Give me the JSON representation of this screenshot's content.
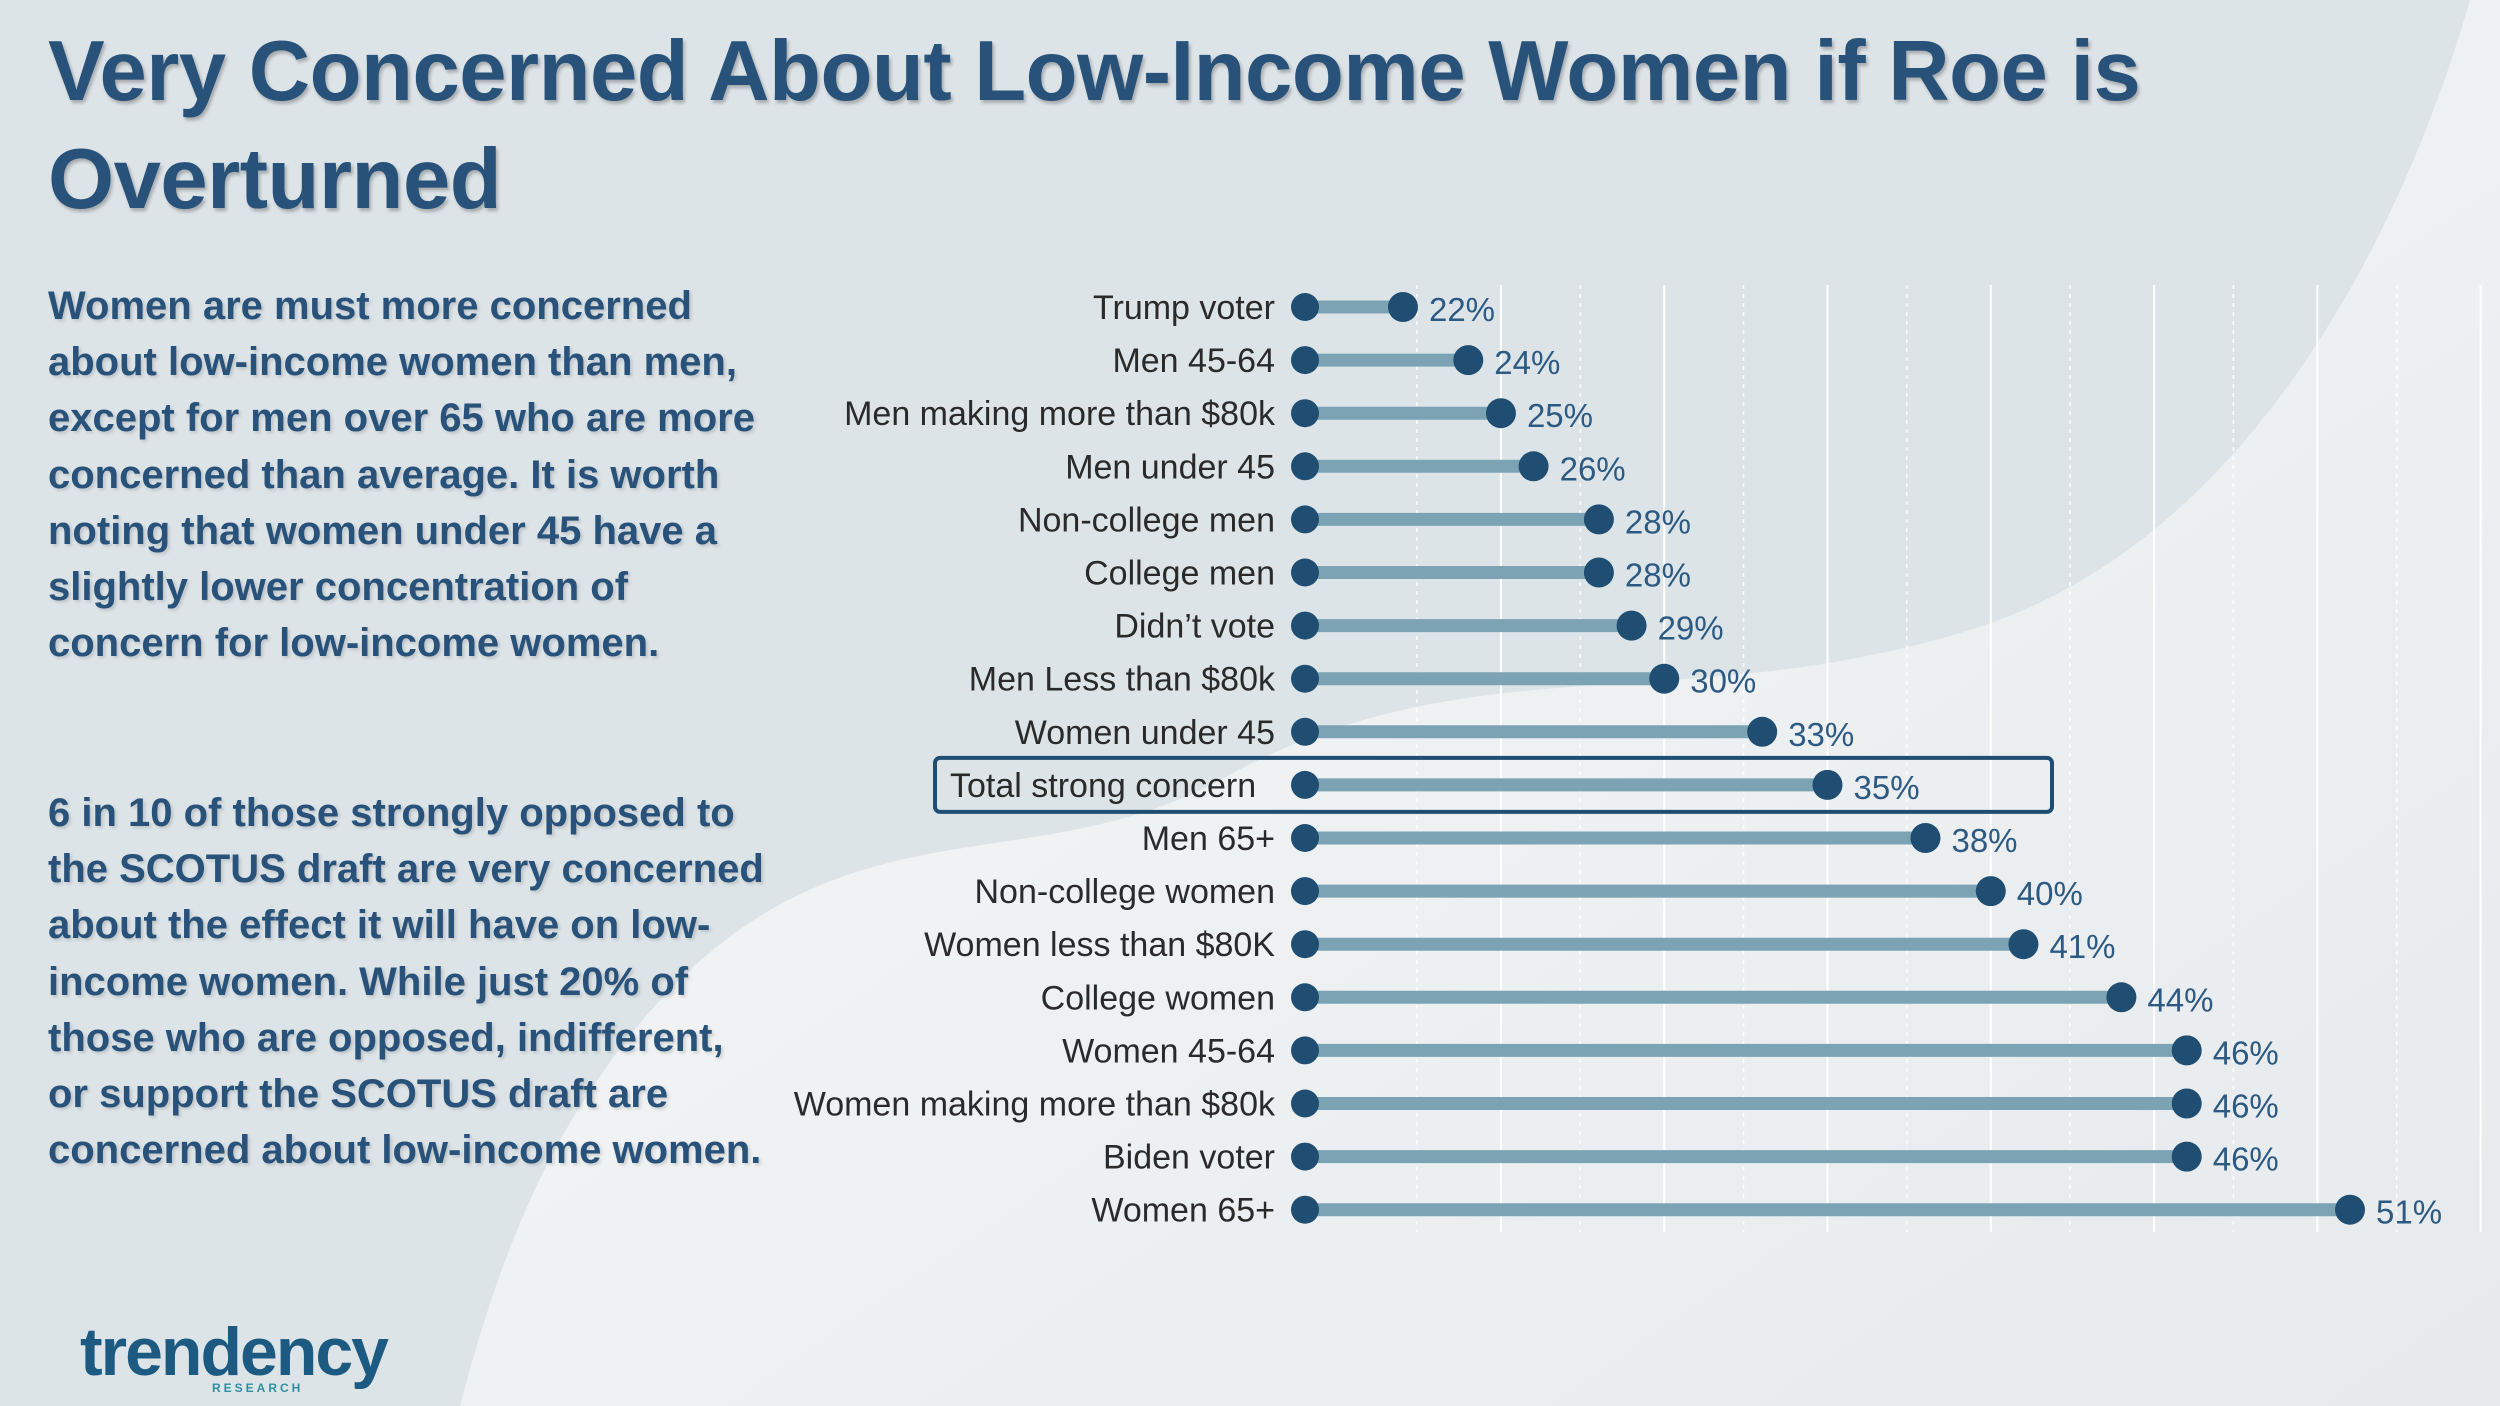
{
  "header": {
    "title": "Very Concerned About Low-Income Women if Roe is Overturned"
  },
  "commentary": {
    "paragraph1": "Women are must more concerned about low-income women than men, except for men over 65 who are more concerned than average. It is worth noting that women under 45 have a slightly lower concentration of concern for low-income women.",
    "paragraph2": "6 in 10 of those strongly opposed to the SCOTUS draft are very concerned about the effect it will have on low-income women. While just 20% of those who are opposed, indifferent, or support the SCOTUS draft are concerned about low-income women."
  },
  "logo": {
    "text": "trendency",
    "subtext": "RESEARCH"
  },
  "colors": {
    "title": "#28527a",
    "bar": "#7ba3b4",
    "dot": "#1f4e72",
    "label": "#2a2a2a",
    "value": "#2d5a82",
    "highlight_border": "#1f4e72",
    "background": "#dde4e8",
    "swoosh": "#f0f2f3"
  },
  "chart_data": {
    "type": "dumbbell",
    "title": "",
    "xlabel": "",
    "ylabel": "",
    "xlim": [
      0,
      55
    ],
    "grid": true,
    "highlight_category": "Total strong concern",
    "categories": [
      "Trump voter",
      "Men 45-64",
      "Men making more than $80k",
      "Men under 45",
      "Non-college men",
      "College men",
      "Didn’t vote",
      "Men Less than $80k",
      "Women under 45",
      "Total strong concern",
      "Men 65+",
      "Non-college women",
      "Women less than $80K",
      "College women",
      "Women 45-64",
      "Women making more than $80k",
      "Biden voter",
      "Women 65+"
    ],
    "values": [
      22,
      24,
      25,
      26,
      28,
      28,
      29,
      30,
      33,
      35,
      38,
      40,
      41,
      44,
      46,
      46,
      46,
      51
    ],
    "value_labels": [
      "22%",
      "24%",
      "25%",
      "26%",
      "28%",
      "28%",
      "29%",
      "30%",
      "33%",
      "35%",
      "38%",
      "40%",
      "41%",
      "44%",
      "46%",
      "46%",
      "46%",
      "51%"
    ],
    "start_value": 19
  }
}
